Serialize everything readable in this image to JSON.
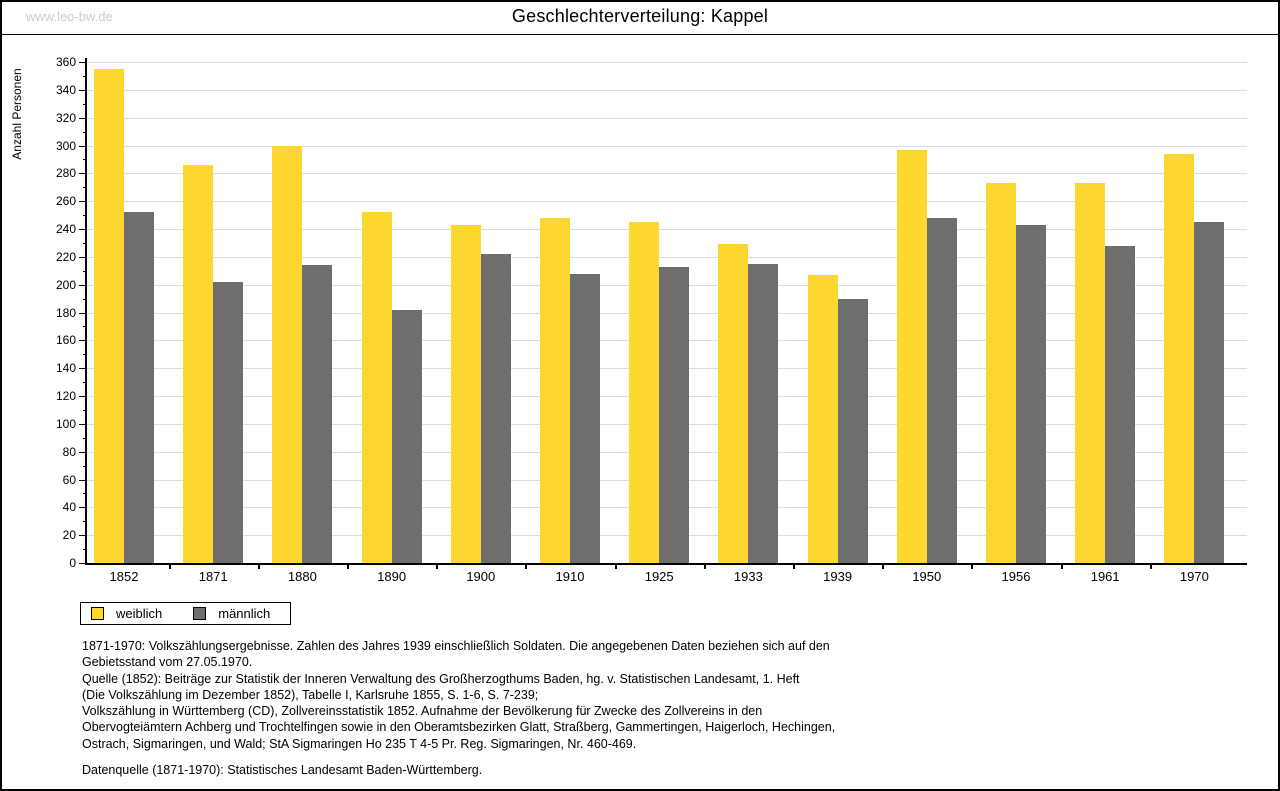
{
  "watermark": "www.leo-bw.de",
  "title": "Geschlechterverteilung: Kappel",
  "chart_data": {
    "type": "bar",
    "title": "Geschlechterverteilung: Kappel",
    "xlabel": "",
    "ylabel": "Anzahl Personen",
    "ylim": [
      0,
      360
    ],
    "yticks": [
      0,
      20,
      40,
      60,
      80,
      100,
      120,
      140,
      160,
      180,
      200,
      220,
      240,
      260,
      280,
      300,
      320,
      340,
      360
    ],
    "ytick_minor_step": 10,
    "grid": true,
    "legend_position": "bottom-left",
    "categories": [
      "1852",
      "1871",
      "1880",
      "1890",
      "1900",
      "1910",
      "1925",
      "1933",
      "1939",
      "1950",
      "1956",
      "1961",
      "1970"
    ],
    "series": [
      {
        "name": "weiblich",
        "color": "#FDD62F",
        "values": [
          355,
          286,
          300,
          252,
          243,
          248,
          245,
          229,
          207,
          297,
          273,
          273,
          294
        ]
      },
      {
        "name": "männlich",
        "color": "#6E6E6E",
        "values": [
          252,
          202,
          214,
          182,
          222,
          208,
          213,
          215,
          190,
          248,
          243,
          228,
          245
        ]
      }
    ]
  },
  "legend": {
    "items": [
      {
        "label": "weiblich",
        "color": "#FDD62F"
      },
      {
        "label": "männlich",
        "color": "#6E6E6E"
      }
    ]
  },
  "footer": {
    "lines": [
      "1871-1970: Volkszählungsergebnisse. Zahlen des Jahres 1939 einschließlich Soldaten. Die angegebenen Daten beziehen sich auf den",
      "Gebietsstand vom 27.05.1970.",
      "Quelle (1852): Beiträge zur Statistik der Inneren Verwaltung des Großherzogthums Baden, hg. v. Statistischen Landesamt, 1. Heft",
      "(Die Volkszählung im Dezember 1852), Tabelle I, Karlsruhe 1855, S. 1-6, S. 7-239;",
      "Volkszählung in Württemberg (CD), Zollvereinsstatistik 1852. Aufnahme der Bevölkerung für Zwecke des Zollvereins in den",
      "Obervogteiämtern Achberg und Trochtelfingen sowie in den Oberamtsbezirken Glatt, Straßberg, Gammertingen, Haigerloch, Hechingen,",
      "Ostrach, Sigmaringen, und Wald; StA Sigmaringen Ho 235 T 4-5 Pr. Reg. Sigmaringen, Nr. 460-469."
    ],
    "datasource": "Datenquelle (1871-1970): Statistisches Landesamt Baden-Württemberg."
  },
  "colors": {
    "grid": "#DCDCDC",
    "axis": "#000000",
    "watermark": "#CCCCCC",
    "weiblich": "#FDD62F",
    "maennlich": "#6E6E6E"
  }
}
